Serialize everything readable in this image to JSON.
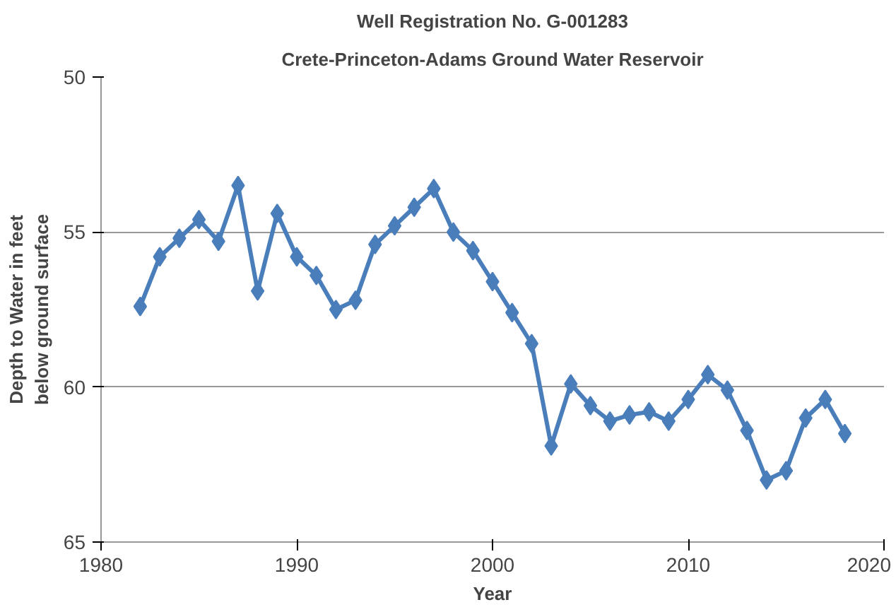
{
  "chart_data": {
    "type": "line",
    "title": "Well Registration No. G-001283",
    "subtitle": "Crete-Princeton-Adams Ground Water Reservoir",
    "xlabel": "Year",
    "ylabel": "Depth to Water in feet\nbelow ground surface",
    "x": [
      1982,
      1983,
      1984,
      1985,
      1986,
      1987,
      1988,
      1989,
      1990,
      1991,
      1992,
      1993,
      1994,
      1995,
      1996,
      1997,
      1998,
      1999,
      2000,
      2001,
      2002,
      2003,
      2004,
      2005,
      2006,
      2007,
      2008,
      2009,
      2010,
      2011,
      2012,
      2013,
      2014,
      2015,
      2016,
      2017,
      2018
    ],
    "series": [
      {
        "color": "#4a7ebb",
        "values": [
          57.4,
          55.8,
          55.2,
          54.6,
          55.3,
          53.5,
          56.9,
          54.4,
          55.8,
          56.4,
          57.5,
          57.2,
          55.4,
          54.8,
          54.2,
          53.6,
          55.0,
          55.6,
          56.6,
          57.6,
          58.6,
          61.9,
          59.9,
          60.6,
          61.1,
          60.9,
          60.8,
          61.1,
          60.4,
          59.6,
          60.1,
          61.4,
          63.0,
          62.7,
          61.0,
          60.4,
          61.5
        ]
      }
    ],
    "xlim": [
      1980,
      2020
    ],
    "xticks": [
      1980,
      1990,
      2000,
      2010,
      2020
    ],
    "ylim": [
      65,
      50
    ],
    "yticks": [
      50,
      55,
      60,
      65
    ],
    "grid": "y",
    "marker": "diamond",
    "line_style": "solid"
  }
}
